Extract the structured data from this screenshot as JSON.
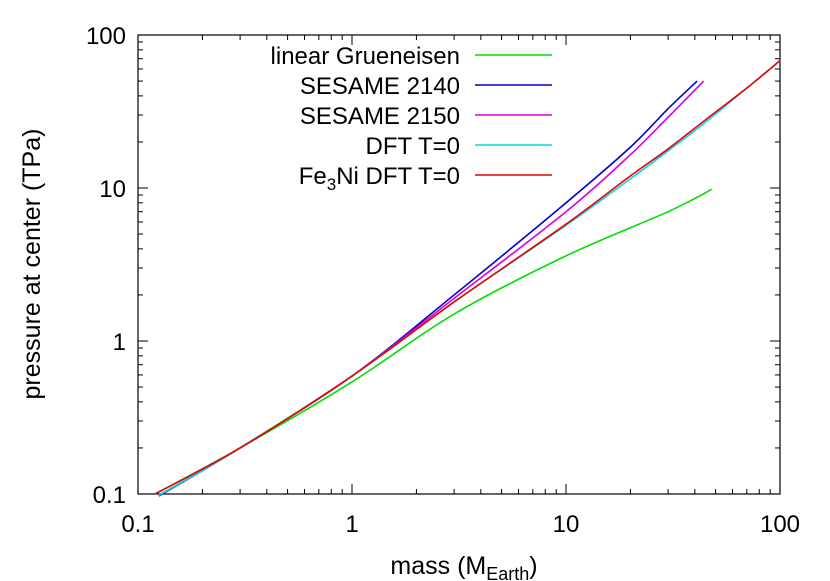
{
  "chart_data": {
    "type": "line",
    "xlabel": "mass (M",
    "xlabel_sub": "Earth",
    "xlabel_close": ")",
    "ylabel": "pressure at center (TPa)",
    "x_scale": "log",
    "y_scale": "log",
    "xlim": [
      0.1,
      100
    ],
    "ylim": [
      0.1,
      100
    ],
    "x_ticks": [
      {
        "value": 0.1,
        "label": "0.1"
      },
      {
        "value": 1,
        "label": "1"
      },
      {
        "value": 10,
        "label": "10"
      },
      {
        "value": 100,
        "label": "100"
      }
    ],
    "y_ticks": [
      {
        "value": 0.1,
        "label": "0.1"
      },
      {
        "value": 1,
        "label": "1"
      },
      {
        "value": 10,
        "label": "10"
      },
      {
        "value": 100,
        "label": "100"
      }
    ],
    "grid": false,
    "legend_position": "top-left",
    "series": [
      {
        "name": "linear Grueneisen",
        "color": "#00e000",
        "points": [
          [
            0.12,
            0.1
          ],
          [
            0.3,
            0.2
          ],
          [
            1,
            0.54
          ],
          [
            3,
            1.5
          ],
          [
            10,
            3.6
          ],
          [
            30,
            7.0
          ],
          [
            48,
            9.8
          ]
        ]
      },
      {
        "name": "SESAME 2140",
        "color": "#0000cc",
        "points": [
          [
            0.125,
            0.097
          ],
          [
            0.3,
            0.2
          ],
          [
            1,
            0.59
          ],
          [
            3,
            2.0
          ],
          [
            10,
            8.0
          ],
          [
            20,
            18.5
          ],
          [
            30,
            33
          ],
          [
            41,
            50
          ]
        ]
      },
      {
        "name": "SESAME 2150",
        "color": "#dd00dd",
        "points": [
          [
            0.125,
            0.098
          ],
          [
            0.3,
            0.2
          ],
          [
            1,
            0.59
          ],
          [
            3,
            1.9
          ],
          [
            10,
            7.0
          ],
          [
            20,
            16.5
          ],
          [
            30,
            29
          ],
          [
            44,
            50
          ]
        ]
      },
      {
        "name": "DFT T=0",
        "color": "#00dddd",
        "points": [
          [
            0.125,
            0.098
          ],
          [
            0.3,
            0.2
          ],
          [
            1,
            0.59
          ],
          [
            3,
            1.8
          ],
          [
            10,
            5.7
          ],
          [
            20,
            11.5
          ],
          [
            30,
            17.5
          ],
          [
            45,
            27
          ],
          [
            70,
            45
          ],
          [
            100,
            68
          ]
        ]
      },
      {
        "name_prefix": "Fe",
        "name_sub": "3",
        "name_suffix": "Ni DFT T=0",
        "color": "#ee0000",
        "points": [
          [
            0.12,
            0.1
          ],
          [
            0.3,
            0.2
          ],
          [
            1,
            0.59
          ],
          [
            3,
            1.8
          ],
          [
            10,
            5.8
          ],
          [
            20,
            12
          ],
          [
            30,
            18
          ],
          [
            45,
            28
          ],
          [
            70,
            45
          ],
          [
            100,
            68
          ]
        ]
      }
    ]
  }
}
